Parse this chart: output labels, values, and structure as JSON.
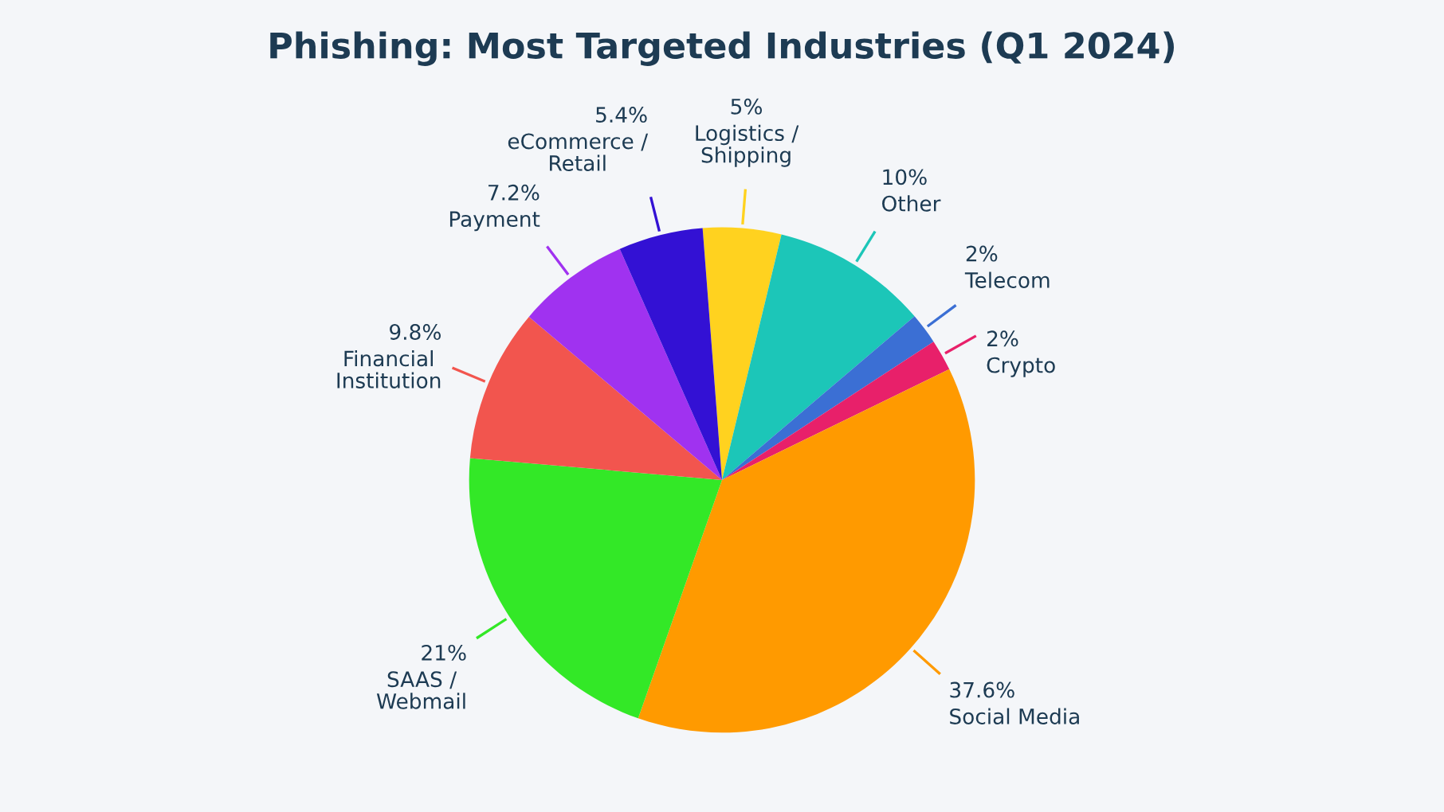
{
  "chart_data": {
    "type": "pie",
    "title": "Phishing: Most Targeted Industries (Q1 2024)",
    "categories": [
      "Logistics /\nShipping",
      "Other",
      "Telecom",
      "Crypto",
      "Social Media",
      "SAAS /\nWebmail",
      "Financial\nInstitution",
      "Payment",
      "eCommerce /\nRetail"
    ],
    "values": [
      5,
      10,
      2,
      2,
      37.6,
      21,
      9.8,
      7.2,
      5.4
    ],
    "colors": [
      "#ffd21f",
      "#1cc6b8",
      "#3b6fd4",
      "#e8206a",
      "#ff9a00",
      "#33e827",
      "#f2554e",
      "#a032f0",
      "#3311d4"
    ],
    "value_labels": [
      "5%",
      "10%",
      "2%",
      "2%",
      "37.6%",
      "21%",
      "9.8%",
      "7.2%",
      "5.4%"
    ]
  }
}
